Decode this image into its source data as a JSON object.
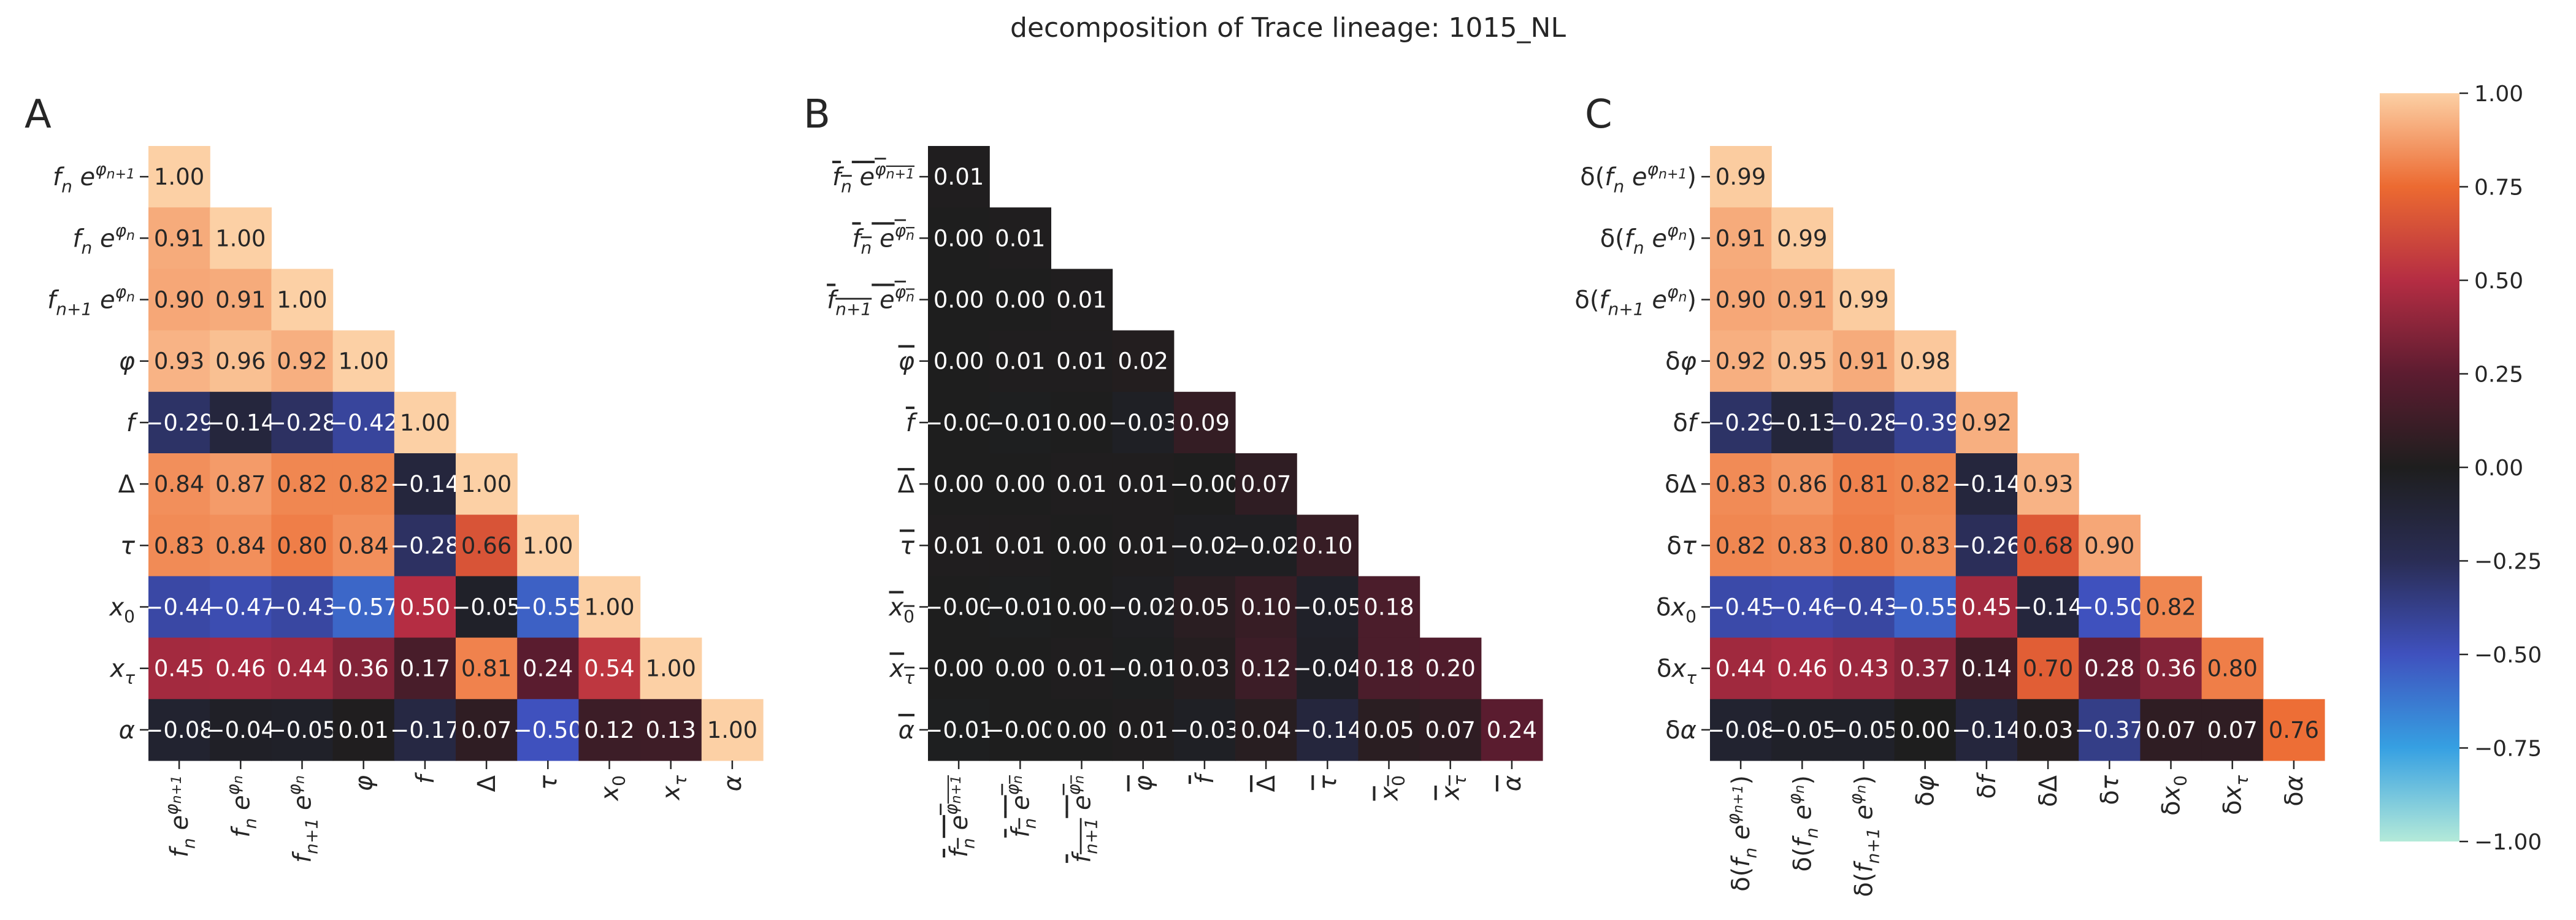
{
  "title": "decomposition of Trace lineage: 1015_NL",
  "colorbar": {
    "ticks": [
      "1.00",
      "0.75",
      "0.50",
      "0.25",
      "0.00",
      "−0.25",
      "−0.50",
      "−0.75",
      "−1.00"
    ],
    "tick_values": [
      1.0,
      0.75,
      0.5,
      0.25,
      0.0,
      -0.25,
      -0.5,
      -0.75,
      -1.0
    ],
    "range": [
      -1.0,
      1.0
    ],
    "colormap": "icefire",
    "colors": [
      "#b4ead9",
      "#36a0e2",
      "#3f51be",
      "#2a2d55",
      "#1e1e1e",
      "#5c1c30",
      "#b52d43",
      "#ec6a31",
      "#fcd0a5"
    ]
  },
  "chart_data": [
    {
      "type": "heatmap",
      "panel": "A",
      "mask": "upper-triangle",
      "labels": [
        "f_n e^{φ_{n+1}}",
        "f_n e^{φ_n}",
        "f_{n+1} e^{φ_n}",
        "φ",
        "f",
        "Δ",
        "τ",
        "x_0",
        "x_τ",
        "α"
      ],
      "values": [
        [
          1.0
        ],
        [
          0.91,
          1.0
        ],
        [
          0.9,
          0.91,
          1.0
        ],
        [
          0.93,
          0.96,
          0.92,
          1.0
        ],
        [
          -0.29,
          -0.14,
          -0.28,
          -0.42,
          1.0
        ],
        [
          0.84,
          0.87,
          0.82,
          0.82,
          -0.14,
          1.0
        ],
        [
          0.83,
          0.84,
          0.8,
          0.84,
          -0.28,
          0.66,
          1.0
        ],
        [
          -0.44,
          -0.47,
          -0.43,
          -0.57,
          0.5,
          -0.05,
          -0.55,
          1.0
        ],
        [
          0.45,
          0.46,
          0.44,
          0.36,
          0.17,
          0.81,
          0.24,
          0.54,
          1.0
        ],
        [
          -0.08,
          -0.04,
          -0.05,
          0.01,
          -0.17,
          0.07,
          -0.5,
          0.12,
          0.13,
          1.0
        ]
      ]
    },
    {
      "type": "heatmap",
      "panel": "B",
      "mask": "upper-triangle",
      "labels": [
        "overline{f_n e^{φ_{n+1}}}",
        "overline{f_n e^{φ_n}}",
        "overline{f_{n+1} e^{φ_n}}",
        "overline{φ}",
        "overline{f}",
        "overline{Δ}",
        "overline{τ}",
        "overline{x_0}",
        "overline{x_τ}",
        "overline{α}"
      ],
      "values": [
        [
          0.01
        ],
        [
          0.0,
          0.01
        ],
        [
          0.0,
          0.0,
          0.01
        ],
        [
          0.0,
          0.01,
          0.01,
          0.02
        ],
        [
          -0.0,
          -0.01,
          0.0,
          -0.03,
          0.09
        ],
        [
          0.0,
          0.0,
          0.01,
          0.01,
          -0.0,
          0.07
        ],
        [
          0.01,
          0.01,
          0.0,
          0.01,
          -0.02,
          -0.02,
          0.1
        ],
        [
          -0.0,
          -0.01,
          0.0,
          -0.02,
          0.05,
          0.1,
          -0.05,
          0.18
        ],
        [
          0.0,
          0.0,
          0.01,
          -0.01,
          0.03,
          0.12,
          -0.04,
          0.18,
          0.2
        ],
        [
          -0.01,
          -0.0,
          0.0,
          0.01,
          -0.03,
          0.04,
          -0.14,
          0.05,
          0.07,
          0.24
        ]
      ]
    },
    {
      "type": "heatmap",
      "panel": "C",
      "mask": "upper-triangle",
      "labels": [
        "δ(f_n e^{φ_{n+1}})",
        "δ(f_n e^{φ_n})",
        "δ(f_{n+1} e^{φ_n})",
        "δφ",
        "δf",
        "δΔ",
        "δτ",
        "δx_0",
        "δx_τ",
        "δα"
      ],
      "values": [
        [
          0.99
        ],
        [
          0.91,
          0.99
        ],
        [
          0.9,
          0.91,
          0.99
        ],
        [
          0.92,
          0.95,
          0.91,
          0.98
        ],
        [
          -0.29,
          -0.13,
          -0.28,
          -0.39,
          0.92
        ],
        [
          0.83,
          0.86,
          0.81,
          0.82,
          -0.14,
          0.93
        ],
        [
          0.82,
          0.83,
          0.8,
          0.83,
          -0.26,
          0.68,
          0.9
        ],
        [
          -0.45,
          -0.46,
          -0.43,
          -0.55,
          0.45,
          -0.14,
          -0.5,
          0.82
        ],
        [
          0.44,
          0.46,
          0.43,
          0.37,
          0.14,
          0.7,
          0.28,
          0.36,
          0.8
        ],
        [
          -0.08,
          -0.05,
          -0.05,
          0.0,
          -0.14,
          0.03,
          -0.37,
          0.07,
          0.07,
          0.76
        ]
      ]
    }
  ]
}
